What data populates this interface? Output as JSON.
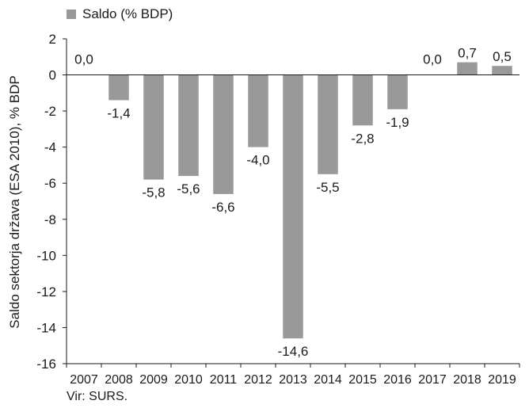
{
  "chart_data": {
    "type": "bar",
    "categories": [
      "2007",
      "2008",
      "2009",
      "2010",
      "2011",
      "2012",
      "2013",
      "2014",
      "2015",
      "2016",
      "2017",
      "2018",
      "2019"
    ],
    "series": [
      {
        "name": "Saldo (% BDP)",
        "values": [
          0.0,
          -1.4,
          -5.8,
          -5.6,
          -6.6,
          -4.0,
          -14.6,
          -5.5,
          -2.8,
          -1.9,
          0.0,
          0.7,
          0.5
        ]
      }
    ],
    "data_labels": [
      "0,0",
      "-1,4",
      "-5,8",
      "-5,6",
      "-6,6",
      "-4,0",
      "-14,6",
      "-5,5",
      "-2,8",
      "-1,9",
      "0,0",
      "0,7",
      "0,5"
    ],
    "ylabel": "Saldo sektorja država (ESA 2010), % BDP",
    "ylim": [
      -16,
      2
    ],
    "yticks": [
      2,
      0,
      -2,
      -4,
      -6,
      -8,
      -10,
      -12,
      -14,
      -16
    ],
    "ytick_labels": [
      "2",
      "0",
      "-2",
      "-4",
      "-6",
      "-8",
      "-10",
      "-12",
      "-14",
      "-16"
    ],
    "bar_color": "#999999",
    "grid": false,
    "legend": "top-left"
  },
  "legend": {
    "label": "Saldo (% BDP)"
  },
  "source": "Vir: SURS."
}
